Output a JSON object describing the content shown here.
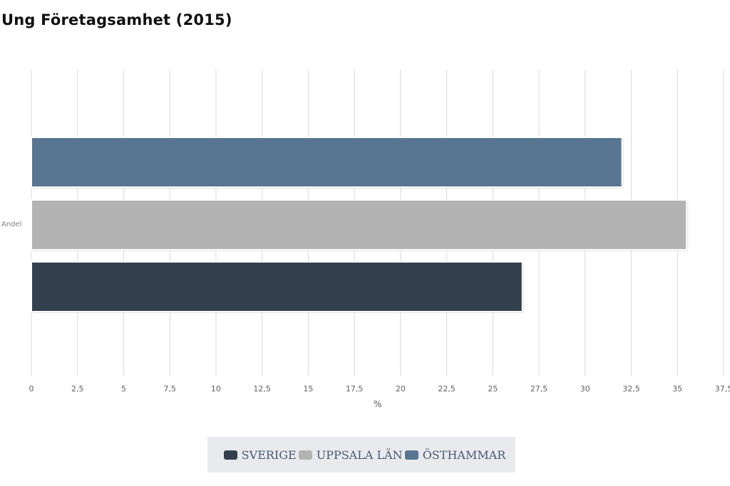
{
  "chart_data": {
    "type": "bar",
    "orientation": "horizontal",
    "title": "Ung Företagsamhet (2015)",
    "categories": [
      "Andel"
    ],
    "xlabel": "%",
    "ylabel": "",
    "xlim": [
      0,
      37.5
    ],
    "xticks": [
      0,
      2.5,
      5,
      7.5,
      10,
      12.5,
      15,
      17.5,
      20,
      22.5,
      25,
      27.5,
      30,
      32.5,
      35,
      37.5
    ],
    "xtick_labels": [
      "0",
      "2,5",
      "5",
      "7,5",
      "10",
      "12,5",
      "15",
      "17,5",
      "20",
      "22,5",
      "25",
      "27,5",
      "30",
      "32,5",
      "35",
      "37,5"
    ],
    "grid": true,
    "legend_position": "bottom-center",
    "series": [
      {
        "name": "SVERIGE",
        "values": [
          26.6
        ],
        "color": "#35404f"
      },
      {
        "name": "UPPSALA LÄN",
        "values": [
          35.5
        ],
        "color": "#b3b3b3"
      },
      {
        "name": "ÖSTHAMMAR",
        "values": [
          32.0
        ],
        "color": "#587591"
      }
    ],
    "bar_order_top_to_bottom": [
      "ÖSTHAMMAR",
      "UPPSALA LÄN",
      "SVERIGE"
    ]
  }
}
